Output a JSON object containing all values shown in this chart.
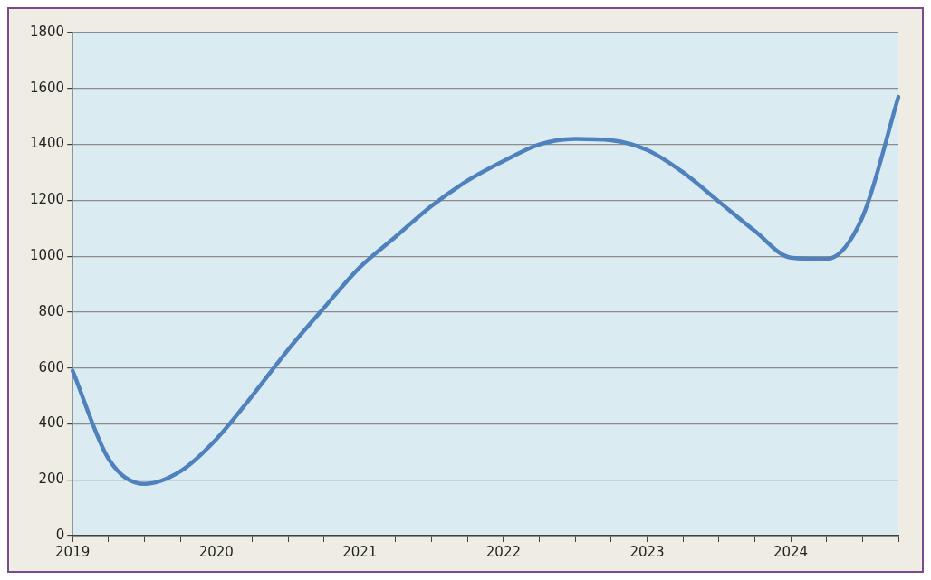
{
  "chart_data": {
    "type": "line",
    "categories": [
      "2019",
      null,
      null,
      null,
      "2020",
      null,
      null,
      null,
      "2021",
      null,
      null,
      null,
      "2022",
      null,
      null,
      null,
      "2023",
      null,
      null,
      null,
      "2024",
      null,
      null,
      null
    ],
    "series": [
      {
        "color": "#4f81bd",
        "values": [
          590,
          275,
          185,
          230,
          345,
          500,
          665,
          815,
          960,
          1070,
          1180,
          1270,
          1340,
          1400,
          1420,
          1415,
          1380,
          1300,
          1195,
          1090,
          995,
          990,
          1140,
          1570
        ]
      }
    ],
    "ylim": [
      0,
      1800
    ],
    "yticks": [
      0,
      200,
      400,
      600,
      800,
      1000,
      1200,
      1400,
      1600,
      1800
    ],
    "grid": "y",
    "legend": false,
    "marker": "none",
    "line_style": "solid"
  }
}
